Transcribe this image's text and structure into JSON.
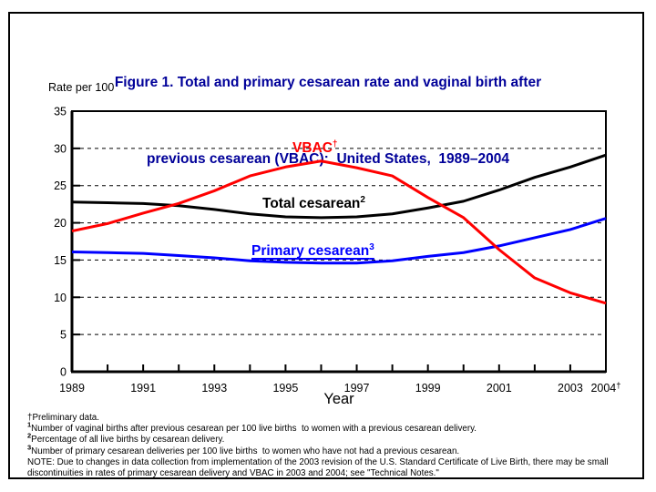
{
  "figure": {
    "title_line1": "Figure 1. Total and primary cesarean rate and vaginal birth after",
    "title_line2": "previous cesarean (VBAC):  United States,  1989–2004",
    "title_color": "#000099",
    "y_axis_label": "Rate per 100",
    "x_axis_label": "Year"
  },
  "chart_data": {
    "type": "line",
    "x": [
      1989,
      1990,
      1991,
      1992,
      1993,
      1994,
      1995,
      1996,
      1997,
      1998,
      1999,
      2000,
      2001,
      2002,
      2003,
      2004
    ],
    "xlim": [
      1989,
      2004
    ],
    "ylim": [
      0,
      35
    ],
    "y_ticks": [
      35,
      30,
      25,
      20,
      15,
      10,
      5,
      0
    ],
    "grid": "horizontal dashed at 5,10,15,20,25,30",
    "legend_position": "labels next to lines",
    "x_tick_labels": [
      {
        "year": 1989,
        "text": "1989"
      },
      {
        "year": 1991,
        "text": "1991"
      },
      {
        "year": 1993,
        "text": "1993"
      },
      {
        "year": 1995,
        "text": "1995"
      },
      {
        "year": 1997,
        "text": "1997"
      },
      {
        "year": 1999,
        "text": "1999"
      },
      {
        "year": 2001,
        "text": "2001"
      },
      {
        "year": 2003,
        "text": "2003"
      },
      {
        "year": 2004,
        "text": "2004",
        "sup": "†"
      }
    ],
    "series": [
      {
        "name": "Total cesarean",
        "label_sup": "2",
        "color": "#000000",
        "values": [
          22.8,
          22.7,
          22.6,
          22.3,
          21.8,
          21.2,
          20.8,
          20.7,
          20.8,
          21.2,
          22.0,
          22.9,
          24.4,
          26.1,
          27.5,
          29.1
        ]
      },
      {
        "name": "Primary cesarean",
        "label_sup": "3",
        "color": "#0000ff",
        "label_underline": true,
        "values": [
          16.1,
          16.0,
          15.9,
          15.6,
          15.3,
          14.9,
          14.7,
          14.6,
          14.6,
          14.9,
          15.5,
          16.0,
          16.9,
          18.0,
          19.1,
          20.6
        ]
      },
      {
        "name": "VBAC",
        "label_sup": "†",
        "color": "#ff0000",
        "values": [
          18.9,
          19.9,
          21.3,
          22.6,
          24.3,
          26.3,
          27.5,
          28.3,
          27.4,
          26.3,
          23.4,
          20.7,
          16.4,
          12.6,
          10.6,
          9.2
        ]
      }
    ]
  },
  "footnotes": [
    {
      "marker": "†",
      "sup": false,
      "text": "Preliminary data."
    },
    {
      "marker": "1",
      "sup": true,
      "text": "Number of vaginal births after previous cesarean per 100 live births  to women with a previous cesarean delivery."
    },
    {
      "marker": "2",
      "sup": true,
      "text": "Percentage of all live births by cesarean delivery."
    },
    {
      "marker": "3",
      "sup": true,
      "text": "Number of primary cesarean deliveries per 100 live births  to women who have not had a previous cesarean."
    },
    {
      "marker": "",
      "sup": false,
      "text": "NOTE: Due to changes in data collection from implementation of the 2003 revision of the U.S. Standard Certificate of Live Birth, there may be small discontinuities in rates of primary cesarean delivery and VBAC in 2003 and 2004; see \"Technical Notes.\""
    }
  ]
}
